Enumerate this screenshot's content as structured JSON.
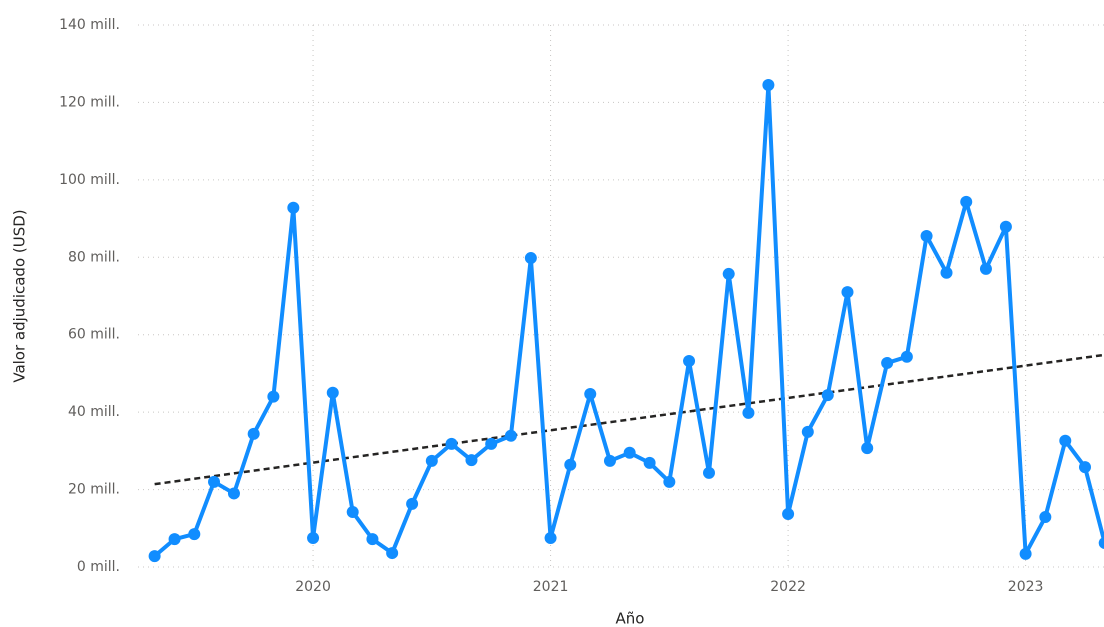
{
  "chart_data": {
    "type": "line",
    "x_label": "Año",
    "y_label": "Valor adjudicado (USD)",
    "x": [
      2019.333,
      2019.417,
      2019.5,
      2019.583,
      2019.667,
      2019.75,
      2019.833,
      2019.917,
      2020,
      2020.083,
      2020.167,
      2020.25,
      2020.333,
      2020.417,
      2020.5,
      2020.583,
      2020.667,
      2020.75,
      2020.833,
      2020.917,
      2021,
      2021.083,
      2021.167,
      2021.25,
      2021.333,
      2021.417,
      2021.5,
      2021.583,
      2021.667,
      2021.75,
      2021.833,
      2021.917,
      2022,
      2022.083,
      2022.167,
      2022.25,
      2022.333,
      2022.417,
      2022.5,
      2022.583,
      2022.667,
      2022.75,
      2022.833,
      2022.917,
      2023,
      2023.083,
      2023.167,
      2023.25,
      2023.333
    ],
    "series": [
      {
        "name": "Valor adjudicado (USD)",
        "color": "#118dff",
        "values": [
          2.8,
          7.2,
          8.5,
          22,
          19,
          34.4,
          44,
          92.8,
          7.5,
          45,
          14.2,
          7.2,
          3.6,
          16.3,
          27.4,
          31.8,
          27.6,
          31.8,
          33.9,
          79.8,
          7.5,
          26.4,
          44.7,
          27.4,
          29.5,
          26.9,
          22,
          53.2,
          24.3,
          75.7,
          39.8,
          124.5,
          13.7,
          34.9,
          44.4,
          71,
          30.7,
          52.7,
          54.3,
          85.5,
          76,
          94.3,
          77,
          87.9,
          3.4,
          12.9,
          32.6,
          25.8,
          6.2
        ]
      }
    ],
    "trend": {
      "color": "#252423",
      "x": [
        2019.333,
        2023.333
      ],
      "values": [
        21.4,
        54.8
      ]
    },
    "xlim": [
      2019.263,
      2023.33
    ],
    "xticks": [
      2020,
      2021,
      2022,
      2023
    ],
    "ylim": [
      0,
      140
    ],
    "yticks": [
      {
        "value": 0,
        "label": "0 mill."
      },
      {
        "value": 20,
        "label": "20 mill."
      },
      {
        "value": 40,
        "label": "40 mill."
      },
      {
        "value": 60,
        "label": "60 mill."
      },
      {
        "value": 80,
        "label": "80 mill."
      },
      {
        "value": 100,
        "label": "100 mill."
      },
      {
        "value": 120,
        "label": "120 mill."
      },
      {
        "value": 140,
        "label": "140 mill."
      }
    ],
    "grid": true
  }
}
